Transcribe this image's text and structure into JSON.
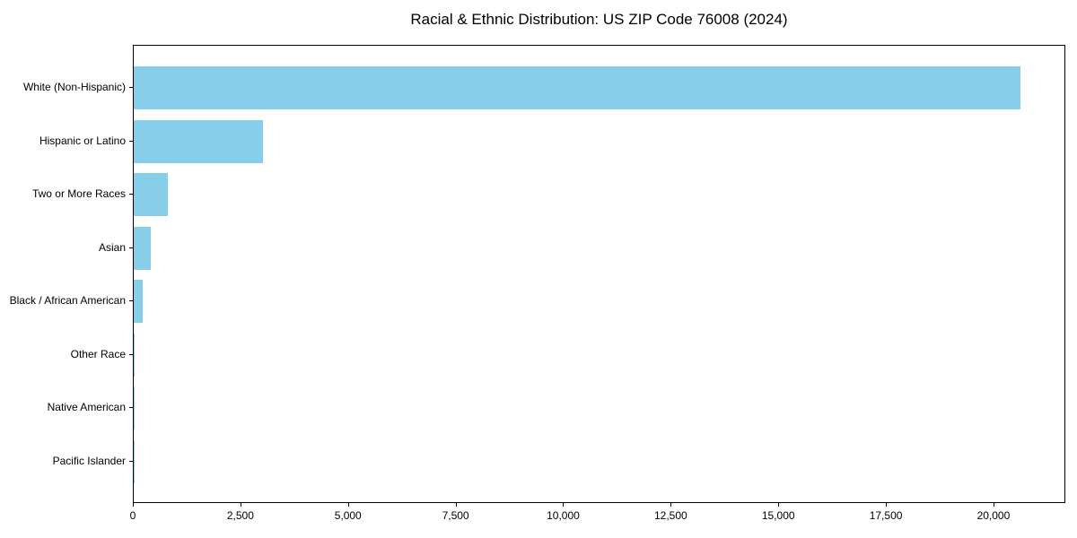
{
  "chart_data": {
    "type": "bar",
    "orientation": "horizontal",
    "title": "Racial & Ethnic Distribution: US ZIP Code 76008 (2024)",
    "categories": [
      "White (Non-Hispanic)",
      "Hispanic or Latino",
      "Two or More Races",
      "Asian",
      "Black / African American",
      "Other Race",
      "Native American",
      "Pacific Islander"
    ],
    "values": [
      20600,
      3000,
      790,
      390,
      200,
      25,
      10,
      5
    ],
    "xlabel": "",
    "ylabel": "",
    "xlim": [
      0,
      21670
    ],
    "x_ticks": [
      0,
      2500,
      5000,
      7500,
      10000,
      12500,
      15000,
      17500,
      20000
    ],
    "x_tick_labels": [
      "0",
      "2,500",
      "5,000",
      "7,500",
      "10,000",
      "12,500",
      "15,000",
      "17,500",
      "20,000"
    ],
    "bar_color": "#87CEEB",
    "axis_color": "#000000",
    "background_color": "#FFFFFF",
    "grid": false,
    "legend": null
  }
}
